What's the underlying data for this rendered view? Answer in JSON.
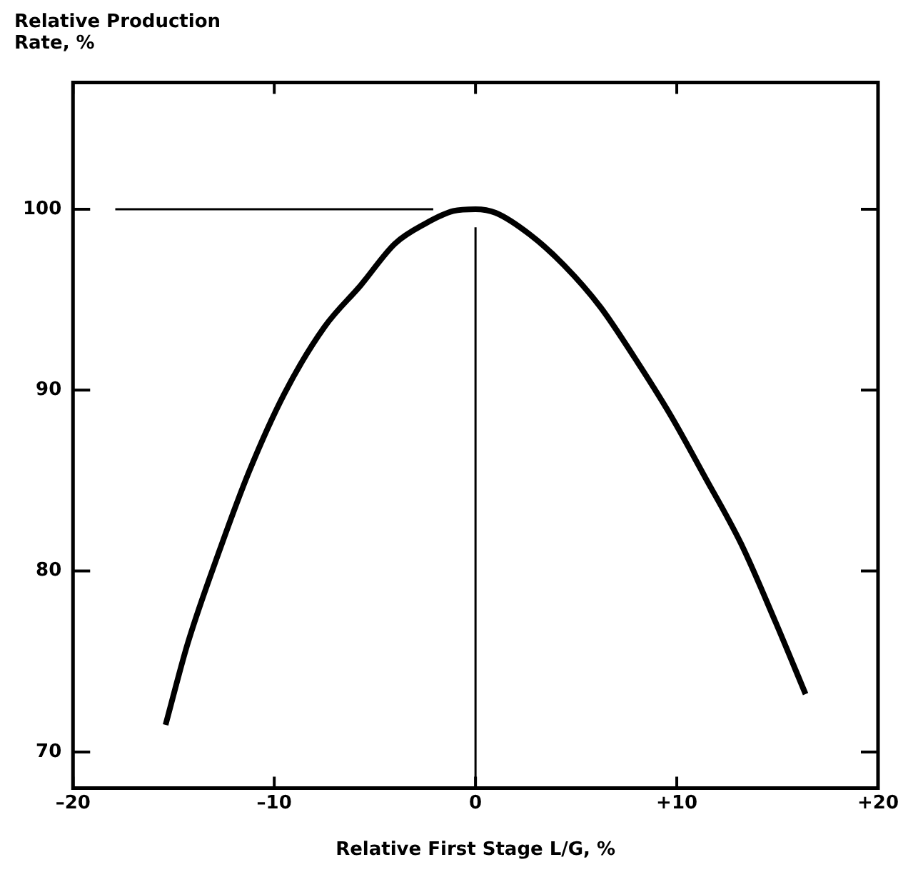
{
  "chart_data": {
    "type": "line",
    "ylabel": "Relative Production Rate, %",
    "xlabel": "Relative First Stage L/G, %",
    "xlim": [
      -20,
      20
    ],
    "xticks": [
      {
        "value": -20,
        "label": "–20"
      },
      {
        "value": -10,
        "label": "–10"
      },
      0,
      {
        "value": 10,
        "label": "+10"
      },
      {
        "value": 20,
        "label": "+20"
      }
    ],
    "ylim": [
      68,
      107
    ],
    "yticks": [
      70,
      80,
      90,
      100
    ],
    "grid": false,
    "legend": false,
    "marker": "none",
    "line_style": "solid",
    "series": [
      {
        "color": "#000000",
        "x": [
          -15.4,
          -14.3,
          -12.7,
          -11.25,
          -9.5,
          -7.5,
          -5.7,
          -4.0,
          -2.5,
          -1.1,
          0,
          1.0,
          2.7,
          4.4,
          6.2,
          7.9,
          9.7,
          11.4,
          13.2,
          14.9,
          16.4
        ],
        "values": [
          71.5,
          76.0,
          81.2,
          85.5,
          89.8,
          93.5,
          95.8,
          98.1,
          99.2,
          99.9,
          100,
          99.8,
          98.6,
          96.9,
          94.6,
          91.8,
          88.6,
          85.2,
          81.5,
          77.2,
          73.2
        ]
      },
      {
        "color": "#000000",
        "x": [
          -17.9,
          -2.1
        ],
        "values": [
          100,
          100
        ]
      },
      {
        "color": "#000000",
        "x": [
          0,
          0
        ],
        "values": [
          68,
          99
        ]
      }
    ]
  }
}
